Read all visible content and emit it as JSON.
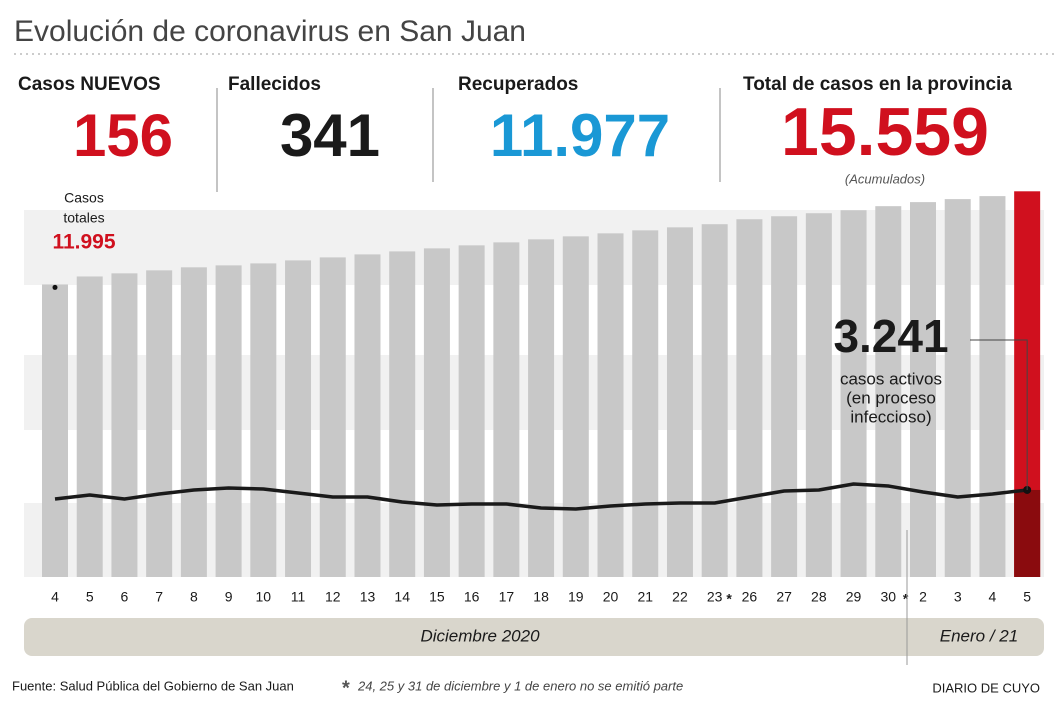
{
  "header": {
    "title": "Evolución de coronavirus en San Juan"
  },
  "stats": [
    {
      "label": "Casos NUEVOS",
      "value": "156"
    },
    {
      "label": "Fallecidos",
      "value": "341"
    },
    {
      "label": "Recuperados",
      "value": "11.977"
    },
    {
      "label": "Total de casos en la provincia",
      "value": "15.559",
      "note": "(Acumulados)"
    }
  ],
  "chart_data": {
    "type": "bar",
    "categories": [
      "4",
      "5",
      "6",
      "7",
      "8",
      "9",
      "10",
      "11",
      "12",
      "13",
      "14",
      "15",
      "16",
      "17",
      "18",
      "19",
      "20",
      "21",
      "22",
      "23",
      "26",
      "27",
      "28",
      "29",
      "30",
      "2",
      "3",
      "4",
      "5"
    ],
    "gap_marker": "*",
    "months": [
      "Diciembre 2020",
      "Enero / 21"
    ],
    "ylim": [
      800,
      15800
    ],
    "y2lim": [
      0,
      14600
    ],
    "highlight_color": "#d0101e",
    "highlight_dark_color": "#8a0b0e",
    "series": [
      {
        "name": "Casos totales",
        "color": "#c8c8c8",
        "values": [
          11995,
          12300,
          12420,
          12535,
          12650,
          12725,
          12800,
          12915,
          13030,
          13145,
          13260,
          13375,
          13490,
          13605,
          13720,
          13835,
          13950,
          14065,
          14180,
          14300,
          14490,
          14605,
          14720,
          14835,
          14990,
          15145,
          15260,
          15375,
          15559
        ]
      },
      {
        "name": "casos activos",
        "color": "#1a1a1a",
        "axis": "y2",
        "values": [
          2906,
          3055,
          2906,
          3092,
          3241,
          3315,
          3278,
          3129,
          2980,
          2980,
          2794,
          2682,
          2719,
          2719,
          2570,
          2533,
          2645,
          2719,
          2757,
          2757,
          2980,
          3204,
          3241,
          3464,
          3390,
          3166,
          2980,
          3092,
          3241
        ]
      }
    ],
    "annotations": [
      {
        "text": "Casos",
        "text2": "totales",
        "label": "11.995"
      },
      {
        "label": "3.241",
        "text": "casos activos",
        "text2": "(en proceso",
        "text3": "infeccioso)"
      }
    ]
  },
  "footer": {
    "source": "Fuente: Salud Pública del Gobierno de San Juan",
    "note": "24, 25 y 31 de diciembre y 1 de enero no se emitió parte",
    "brand": "DIARIO DE CUYO"
  }
}
